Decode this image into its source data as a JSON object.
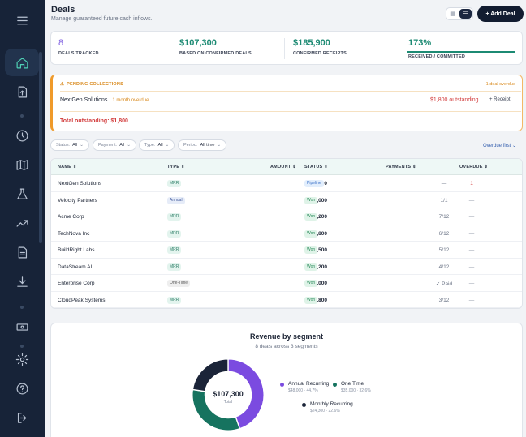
{
  "sidebar": {
    "active": "home",
    "icons": [
      "menu-icon",
      "home-icon",
      "upload-icon",
      "clock-icon",
      "map-icon",
      "flask-icon",
      "trending-icon",
      "document-icon",
      "download-icon",
      "cash-icon",
      "gear-icon",
      "help-icon",
      "logout-icon"
    ]
  },
  "header": {
    "title": "Deals",
    "subtitle": "Manage guaranteed future cash inflows.",
    "add_label": "+ Add Deal"
  },
  "stats": [
    {
      "value": "8",
      "label": "DEALS TRACKED"
    },
    {
      "value": "$107,300",
      "label": "BASED ON CONFIRMED DEALS"
    },
    {
      "value": "$185,900",
      "label": "CONFIRMED RECEIPTS"
    },
    {
      "value": "173%",
      "label": "RECEIVED / COMMITTED",
      "progress": 1.0
    }
  ],
  "pending": {
    "heading": "PENDING COLLECTIONS",
    "overdue_count": "1 deal overdue",
    "item_name": "NextGen Solutions",
    "item_late": "1 month overdue",
    "item_amount": "$1,800 outstanding",
    "receipt_label": "+ Receipt",
    "total": "Total outstanding: $1,800"
  },
  "filters": {
    "status": {
      "label": "Status:",
      "value": "All"
    },
    "payment": {
      "label": "Payment:",
      "value": "All"
    },
    "type": {
      "label": "Type:",
      "value": "All"
    },
    "period": {
      "label": "Period:",
      "value": "All time"
    },
    "sort": "Overdue first"
  },
  "table": {
    "headers": {
      "name": "NAME",
      "type": "TYPE",
      "amount": "AMOUNT",
      "status": "STATUS",
      "payments": "PAYMENTS",
      "overdue": "OVERDUE"
    },
    "rows": [
      {
        "name": "NextGen Solutions",
        "type": "MRR",
        "amount": "$1,800",
        "status": "Pipeline",
        "payments": "—",
        "overdue": "1"
      },
      {
        "name": "Velocity Partners",
        "type": "Annual",
        "amount": "$48,000",
        "status": "Won",
        "payments": "1/1",
        "overdue": "—"
      },
      {
        "name": "Acme Corp",
        "type": "MRR",
        "amount": "$3,200",
        "status": "Won",
        "payments": "7/12",
        "overdue": "—"
      },
      {
        "name": "TechNova Inc",
        "type": "MRR",
        "amount": "$2,800",
        "status": "Won",
        "payments": "6/12",
        "overdue": "—"
      },
      {
        "name": "BuildRight Labs",
        "type": "MRR",
        "amount": "$4,500",
        "status": "Won",
        "payments": "5/12",
        "overdue": "—"
      },
      {
        "name": "DataStream AI",
        "type": "MRR",
        "amount": "$5,200",
        "status": "Won",
        "payments": "4/12",
        "overdue": "—"
      },
      {
        "name": "Enterprise Corp",
        "type": "One-Time",
        "amount": "$35,000",
        "status": "Won",
        "payments": "✓ Paid",
        "overdue": "—"
      },
      {
        "name": "CloudPeak Systems",
        "type": "MRR",
        "amount": "$6,800",
        "status": "Won",
        "payments": "3/12",
        "overdue": "—"
      }
    ]
  },
  "revenue": {
    "title": "Revenue by segment",
    "subtitle": "8 deals across 3 segments",
    "center_value": "$107,300",
    "center_label": "Total",
    "segments": [
      {
        "name": "Annual Recurring",
        "detail": "$48,000 · 44.7%",
        "value": 48000,
        "color": "#7b4be0"
      },
      {
        "name": "One Time",
        "detail": "$35,000 · 32.6%",
        "value": 35000,
        "color": "#16735f"
      },
      {
        "name": "Monthly Recurring",
        "detail": "$24,300 · 22.6%",
        "value": 24300,
        "color": "#1b2438"
      }
    ]
  }
}
